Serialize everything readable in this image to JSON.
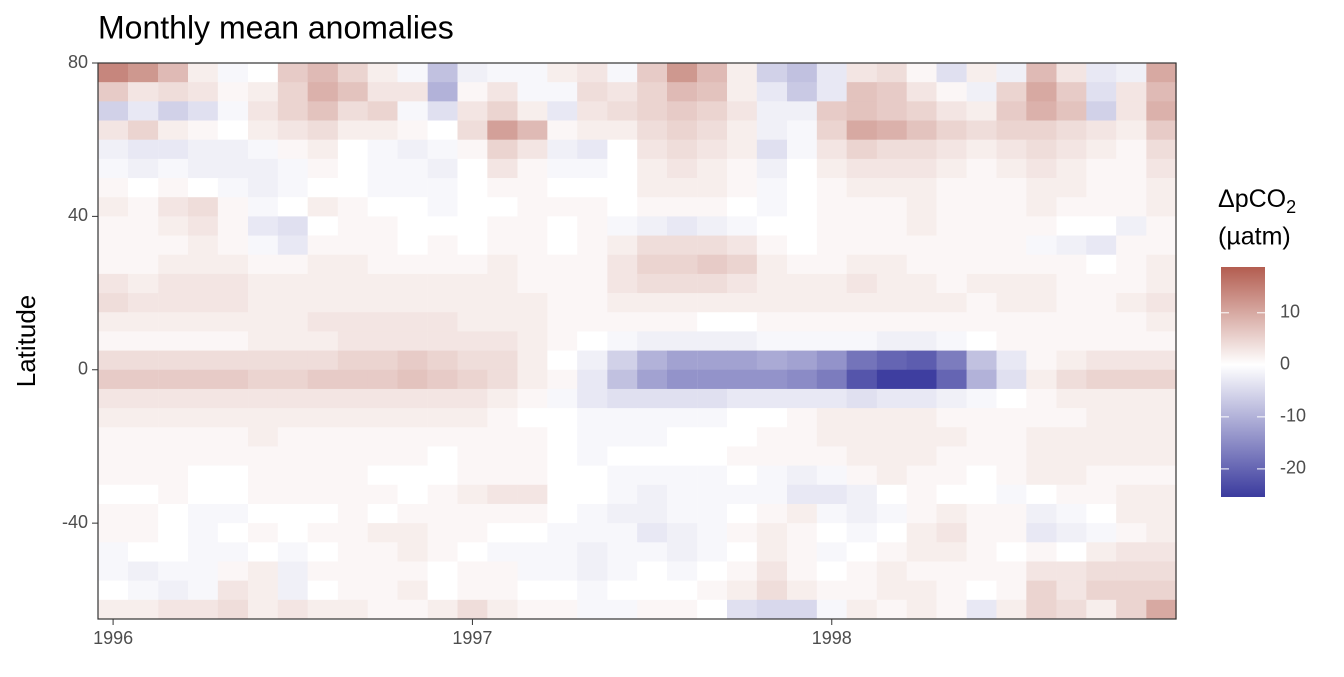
{
  "chart_data": {
    "type": "heatmap",
    "title": "Monthly mean anomalies",
    "y_label": "Latitude",
    "x": [
      1996,
      1996.083,
      1996.167,
      1996.25,
      1996.333,
      1996.417,
      1996.5,
      1996.583,
      1996.667,
      1996.75,
      1996.833,
      1996.917,
      1997,
      1997.083,
      1997.167,
      1997.25,
      1997.333,
      1997.417,
      1997.5,
      1997.583,
      1997.667,
      1997.75,
      1997.833,
      1997.917,
      1998,
      1998.083,
      1998.167,
      1998.25,
      1998.333,
      1998.417,
      1998.5,
      1998.583,
      1998.667,
      1998.75,
      1998.833,
      1998.917
    ],
    "y": [
      77.5,
      72.5,
      67.5,
      62.5,
      57.5,
      52.5,
      47.5,
      42.5,
      37.5,
      32.5,
      27.5,
      22.5,
      17.5,
      12.5,
      7.5,
      2.5,
      -2.5,
      -7.5,
      -12.5,
      -17.5,
      -22.5,
      -27.5,
      -32.5,
      -37.5,
      -42.5,
      -47.5,
      -52.5,
      -57.5,
      -62.5
    ],
    "values": [
      [
        14,
        12,
        8,
        2,
        -1,
        0,
        6,
        8,
        5,
        2,
        -1,
        -8,
        -2,
        -1,
        -1,
        2,
        3,
        -1,
        6,
        12,
        8,
        2,
        -6,
        -8,
        -3,
        3,
        4,
        1,
        -4,
        2,
        -2,
        8,
        3,
        -3,
        -2,
        10
      ],
      [
        6,
        3,
        4,
        3,
        1,
        2,
        5,
        9,
        7,
        3,
        3,
        -10,
        1,
        3,
        -1,
        -1,
        4,
        3,
        5,
        8,
        7,
        2,
        -3,
        -7,
        -3,
        7,
        6,
        3,
        1,
        -2,
        5,
        10,
        6,
        -4,
        3,
        8
      ],
      [
        -6,
        -3,
        -6,
        -4,
        -1,
        3,
        5,
        7,
        4,
        5,
        -1,
        -4,
        3,
        5,
        2,
        -3,
        3,
        4,
        5,
        6,
        5,
        3,
        -2,
        -2,
        6,
        7,
        6,
        5,
        3,
        2,
        6,
        9,
        7,
        -6,
        3,
        9
      ],
      [
        3,
        5,
        2,
        1,
        0,
        2,
        3,
        4,
        2,
        2,
        1,
        0,
        4,
        11,
        8,
        1,
        2,
        2,
        4,
        5,
        4,
        2,
        -2,
        -1,
        5,
        10,
        9,
        7,
        5,
        4,
        5,
        5,
        4,
        3,
        2,
        6
      ],
      [
        -2,
        -3,
        -3,
        -2,
        -2,
        -1,
        1,
        2,
        0,
        -1,
        -2,
        -1,
        1,
        5,
        3,
        -2,
        -3,
        0,
        3,
        4,
        3,
        2,
        -4,
        -1,
        3,
        5,
        4,
        4,
        3,
        2,
        3,
        4,
        3,
        2,
        1,
        4
      ],
      [
        -1,
        -2,
        -1,
        -2,
        -2,
        -2,
        -1,
        1,
        0,
        -1,
        -1,
        -2,
        0,
        3,
        1,
        -1,
        -1,
        0,
        2,
        3,
        2,
        1,
        -2,
        0,
        2,
        3,
        3,
        3,
        2,
        1,
        2,
        3,
        2,
        1,
        1,
        3
      ],
      [
        1,
        0,
        1,
        0,
        -1,
        -2,
        -1,
        0,
        0,
        -1,
        -1,
        -1,
        0,
        1,
        1,
        0,
        0,
        0,
        2,
        2,
        2,
        1,
        -1,
        0,
        1,
        2,
        2,
        2,
        1,
        1,
        1,
        2,
        2,
        1,
        1,
        2
      ],
      [
        2,
        1,
        3,
        4,
        1,
        -1,
        0,
        2,
        1,
        0,
        0,
        -1,
        0,
        0,
        1,
        1,
        1,
        0,
        1,
        1,
        1,
        0,
        -1,
        0,
        1,
        1,
        1,
        2,
        1,
        1,
        1,
        2,
        1,
        1,
        1,
        2
      ],
      [
        1,
        1,
        2,
        3,
        1,
        -3,
        -4,
        0,
        1,
        1,
        0,
        0,
        0,
        1,
        1,
        0,
        1,
        -1,
        -2,
        -3,
        -2,
        -1,
        0,
        0,
        1,
        1,
        1,
        2,
        1,
        1,
        1,
        1,
        0,
        0,
        -2,
        1
      ],
      [
        1,
        1,
        1,
        2,
        1,
        -1,
        -3,
        1,
        1,
        1,
        0,
        1,
        0,
        1,
        1,
        0,
        1,
        2,
        4,
        4,
        4,
        3,
        1,
        0,
        1,
        1,
        1,
        1,
        1,
        1,
        1,
        -1,
        -2,
        -3,
        1,
        1
      ],
      [
        1,
        1,
        2,
        2,
        2,
        1,
        1,
        2,
        2,
        1,
        1,
        1,
        1,
        2,
        1,
        1,
        1,
        3,
        5,
        5,
        6,
        5,
        2,
        1,
        1,
        2,
        2,
        1,
        1,
        1,
        1,
        1,
        1,
        0,
        1,
        2
      ],
      [
        3,
        2,
        3,
        3,
        3,
        2,
        2,
        2,
        2,
        2,
        2,
        2,
        2,
        2,
        1,
        1,
        1,
        3,
        4,
        4,
        4,
        3,
        2,
        2,
        2,
        3,
        2,
        2,
        1,
        2,
        2,
        2,
        1,
        1,
        1,
        2
      ],
      [
        4,
        3,
        3,
        3,
        3,
        2,
        2,
        2,
        2,
        2,
        2,
        2,
        2,
        2,
        2,
        1,
        1,
        2,
        2,
        2,
        2,
        2,
        2,
        2,
        2,
        2,
        2,
        2,
        2,
        1,
        2,
        2,
        1,
        1,
        2,
        3
      ],
      [
        2,
        2,
        2,
        2,
        2,
        2,
        2,
        3,
        3,
        3,
        3,
        3,
        2,
        2,
        2,
        1,
        1,
        1,
        1,
        1,
        0,
        0,
        1,
        1,
        1,
        1,
        1,
        1,
        1,
        1,
        1,
        1,
        1,
        1,
        1,
        2
      ],
      [
        1,
        1,
        1,
        1,
        1,
        2,
        2,
        2,
        3,
        3,
        3,
        3,
        3,
        3,
        2,
        1,
        0,
        -1,
        -2,
        -2,
        -2,
        -2,
        -1,
        -1,
        -1,
        -1,
        -2,
        -2,
        -1,
        0,
        1,
        1,
        1,
        1,
        1,
        1
      ],
      [
        4,
        4,
        4,
        4,
        4,
        4,
        4,
        4,
        5,
        5,
        6,
        5,
        4,
        4,
        2,
        0,
        -2,
        -6,
        -10,
        -12,
        -12,
        -12,
        -11,
        -12,
        -14,
        -18,
        -20,
        -21,
        -17,
        -8,
        -3,
        1,
        2,
        3,
        3,
        3
      ],
      [
        6,
        6,
        6,
        6,
        6,
        5,
        5,
        6,
        6,
        6,
        7,
        6,
        5,
        4,
        2,
        1,
        -3,
        -8,
        -12,
        -14,
        -14,
        -14,
        -14,
        -15,
        -17,
        -22,
        -25,
        -25,
        -20,
        -10,
        -4,
        2,
        4,
        5,
        5,
        5
      ],
      [
        3,
        3,
        3,
        3,
        3,
        3,
        3,
        3,
        3,
        3,
        3,
        3,
        3,
        2,
        1,
        -1,
        -3,
        -4,
        -4,
        -4,
        -4,
        -3,
        -3,
        -3,
        -3,
        -4,
        -3,
        -3,
        -2,
        -1,
        0,
        1,
        2,
        2,
        2,
        2
      ],
      [
        2,
        2,
        2,
        2,
        2,
        2,
        2,
        2,
        2,
        2,
        2,
        2,
        2,
        1,
        0,
        0,
        -1,
        -1,
        -1,
        -1,
        -1,
        0,
        0,
        1,
        2,
        2,
        2,
        2,
        1,
        1,
        1,
        1,
        1,
        2,
        2,
        2
      ],
      [
        1,
        1,
        1,
        1,
        1,
        2,
        1,
        1,
        1,
        1,
        1,
        1,
        1,
        1,
        1,
        0,
        -1,
        -1,
        -1,
        0,
        0,
        0,
        1,
        1,
        2,
        2,
        2,
        2,
        2,
        1,
        1,
        2,
        2,
        2,
        2,
        2
      ],
      [
        1,
        1,
        1,
        1,
        1,
        1,
        1,
        1,
        1,
        1,
        1,
        0,
        1,
        1,
        1,
        0,
        -1,
        0,
        0,
        0,
        0,
        1,
        1,
        1,
        1,
        2,
        2,
        2,
        1,
        1,
        1,
        2,
        2,
        2,
        2,
        2
      ],
      [
        1,
        1,
        1,
        0,
        0,
        1,
        1,
        1,
        1,
        0,
        0,
        0,
        1,
        1,
        1,
        0,
        0,
        -1,
        -1,
        -1,
        -1,
        0,
        -1,
        -2,
        -1,
        1,
        2,
        1,
        1,
        0,
        1,
        2,
        2,
        1,
        1,
        1
      ],
      [
        0,
        0,
        1,
        0,
        0,
        1,
        1,
        1,
        1,
        1,
        0,
        1,
        2,
        3,
        3,
        0,
        0,
        -1,
        -2,
        -1,
        -1,
        -1,
        -1,
        -3,
        -3,
        -2,
        0,
        1,
        0,
        0,
        -1,
        0,
        1,
        1,
        2,
        2
      ],
      [
        1,
        1,
        0,
        -1,
        -1,
        0,
        0,
        0,
        1,
        0,
        1,
        1,
        1,
        1,
        1,
        0,
        -1,
        -2,
        -2,
        -1,
        -1,
        0,
        1,
        2,
        -1,
        -2,
        -1,
        1,
        2,
        1,
        1,
        -2,
        -1,
        0,
        2,
        2
      ],
      [
        1,
        1,
        0,
        -1,
        0,
        1,
        0,
        1,
        1,
        2,
        2,
        1,
        1,
        0,
        0,
        -1,
        -1,
        -1,
        -3,
        -2,
        -1,
        1,
        2,
        1,
        0,
        -1,
        0,
        2,
        3,
        1,
        1,
        -3,
        -2,
        -1,
        1,
        2
      ],
      [
        -1,
        0,
        0,
        -1,
        -1,
        0,
        -1,
        0,
        1,
        1,
        2,
        1,
        0,
        -1,
        -1,
        -1,
        -2,
        -1,
        -1,
        -2,
        -1,
        0,
        2,
        1,
        -1,
        0,
        1,
        2,
        2,
        1,
        0,
        1,
        0,
        2,
        3,
        3
      ],
      [
        -1,
        -2,
        -1,
        -1,
        1,
        2,
        -2,
        1,
        1,
        1,
        1,
        0,
        1,
        1,
        -1,
        -1,
        -2,
        -1,
        0,
        -1,
        0,
        1,
        3,
        1,
        0,
        1,
        2,
        1,
        1,
        1,
        1,
        3,
        3,
        4,
        4,
        4
      ],
      [
        0,
        -1,
        -2,
        -1,
        3,
        2,
        -2,
        0,
        1,
        1,
        2,
        0,
        1,
        1,
        0,
        0,
        -1,
        0,
        0,
        0,
        1,
        2,
        4,
        2,
        1,
        1,
        2,
        2,
        1,
        0,
        1,
        5,
        3,
        5,
        5,
        5
      ],
      [
        2,
        2,
        3,
        3,
        4,
        2,
        3,
        2,
        2,
        1,
        1,
        2,
        4,
        2,
        1,
        1,
        -1,
        -1,
        1,
        1,
        0,
        -4,
        -5,
        -5,
        -1,
        2,
        1,
        2,
        1,
        -3,
        2,
        5,
        4,
        2,
        5,
        10
      ]
    ],
    "xlim": [
      1995.958,
      1998.958
    ],
    "xticks": [
      1996,
      1997,
      1998
    ],
    "ylim": [
      -65,
      80
    ],
    "yticks": [
      -40,
      0,
      40,
      80
    ],
    "colorbar": {
      "title": "ΔpCO",
      "title_subscript": "2",
      "unit": "(µatm)",
      "lim": [
        -25.4,
        18.8
      ],
      "ticks": [
        -20,
        -10,
        0,
        10
      ],
      "colors": [
        "#3b3b9e",
        "#ffffff",
        "#b35d50"
      ]
    }
  }
}
